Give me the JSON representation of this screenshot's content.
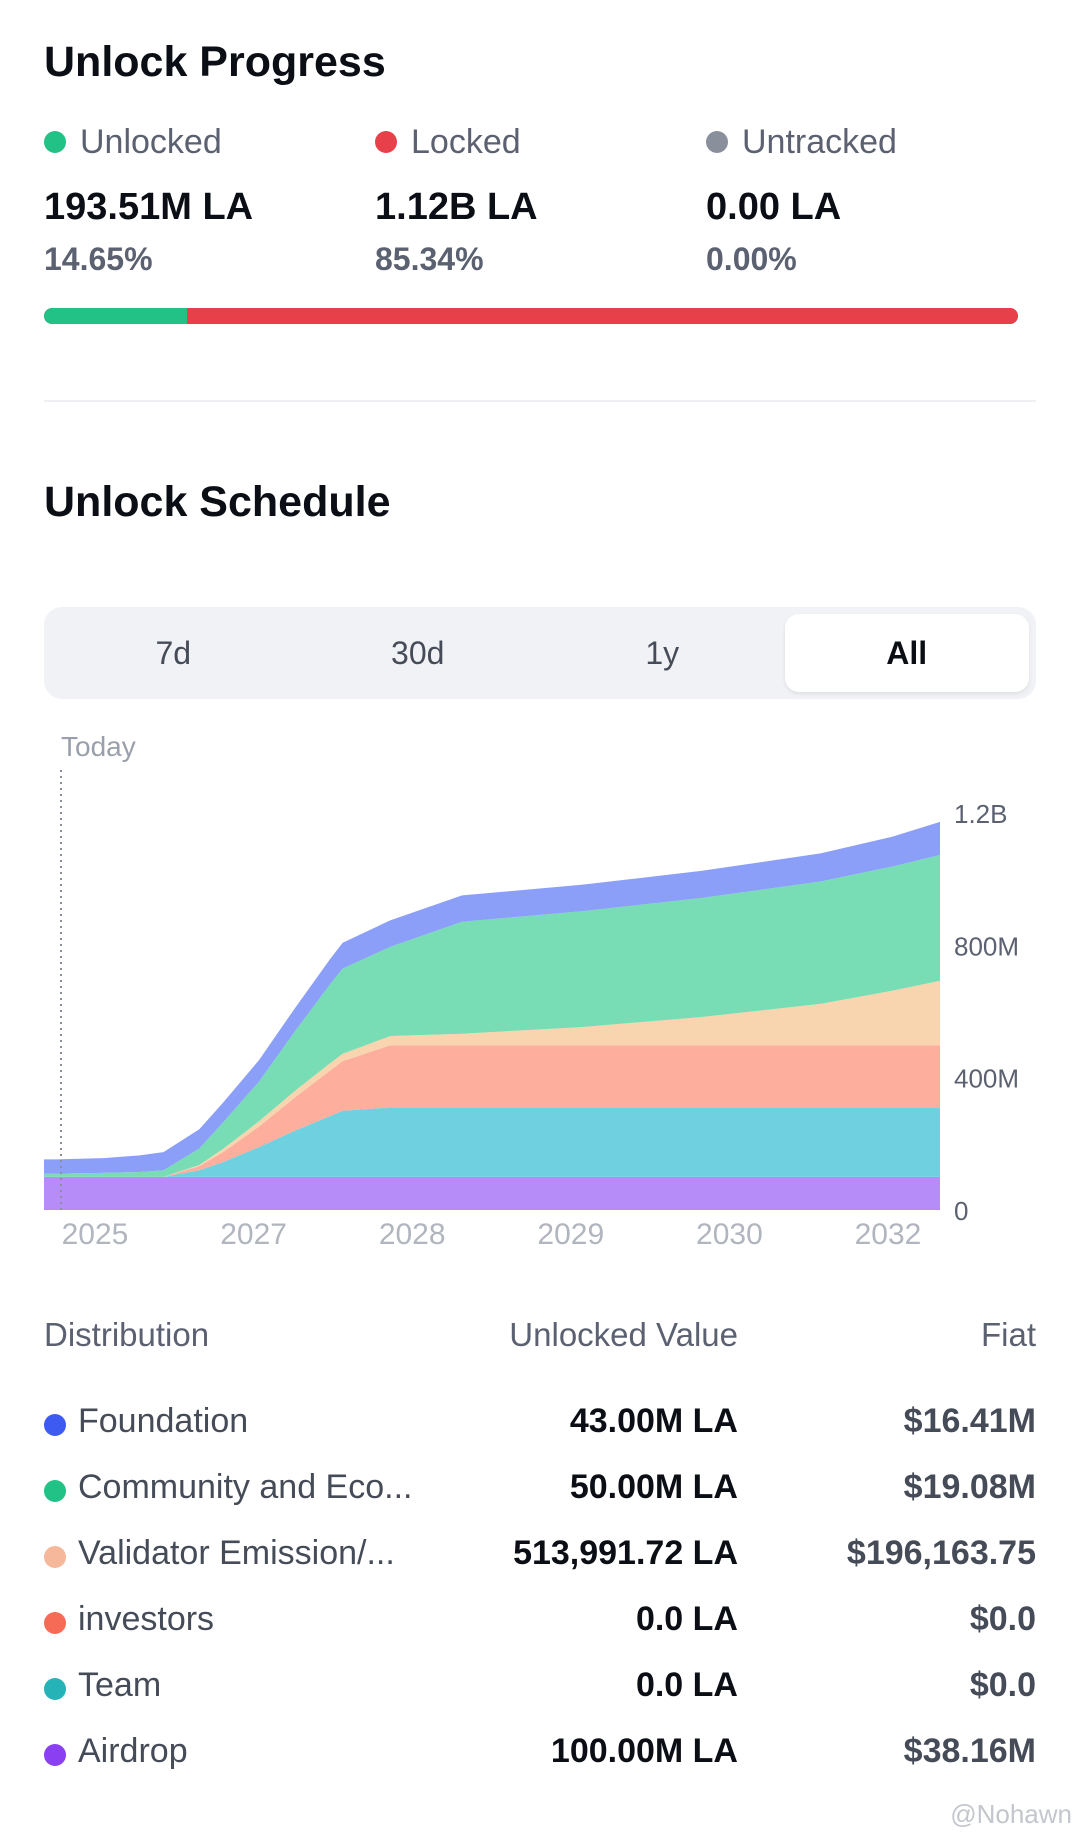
{
  "progress": {
    "title": "Unlock Progress",
    "unlocked": {
      "label": "Unlocked",
      "amount": "193.51M LA",
      "pct": "14.65%",
      "color": "#22c286",
      "fraction": 0.1465
    },
    "locked": {
      "label": "Locked",
      "amount": "1.12B LA",
      "pct": "85.34%",
      "color": "#e8404b",
      "fraction": 0.8534
    },
    "untracked": {
      "label": "Untracked",
      "amount": "0.00 LA",
      "pct": "0.00%",
      "color": "#8a8f9c",
      "fraction": 0.0
    }
  },
  "schedule": {
    "title": "Unlock Schedule",
    "tabs": [
      "7d",
      "30d",
      "1y",
      "All"
    ],
    "active_tab": "All"
  },
  "chart_data": {
    "type": "area",
    "stacked": true,
    "today_label": "Today",
    "x_tick_labels": [
      "2025",
      "2027",
      "2028",
      "2029",
      "2030",
      "2032"
    ],
    "y_tick_labels": [
      "1.2B",
      "800M",
      "400M",
      "0"
    ],
    "y_ticks": [
      1200,
      800,
      400,
      0
    ],
    "ylim": [
      0,
      1330
    ],
    "xlim": [
      2025.5,
      2033.0
    ],
    "x": [
      2025.5,
      2025.6,
      2026.0,
      2026.3,
      2026.5,
      2026.8,
      2027.0,
      2027.3,
      2027.6,
      2027.9,
      2028.0,
      2028.4,
      2029.0,
      2030.0,
      2031.0,
      2032.0,
      2032.6,
      2033.0
    ],
    "series": [
      {
        "name": "Airdrop",
        "color": "#b68cf8",
        "values": [
          100,
          100,
          100,
          100,
          100,
          100,
          100,
          100,
          100,
          100,
          100,
          100,
          100,
          100,
          100,
          100,
          100,
          100
        ]
      },
      {
        "name": "Team",
        "color": "#6fd0e0",
        "values": [
          0,
          0,
          0,
          0,
          0,
          20,
          45,
          90,
          140,
          185,
          200,
          210,
          210,
          210,
          210,
          210,
          210,
          210
        ]
      },
      {
        "name": "investors",
        "color": "#fdae9c",
        "values": [
          0,
          0,
          0,
          0,
          0,
          12,
          30,
          62,
          100,
          138,
          150,
          188,
          188,
          188,
          188,
          188,
          188,
          188
        ]
      },
      {
        "name": "Validator Emission/...",
        "color": "#f8d5ae",
        "values": [
          0,
          0,
          0,
          0,
          0,
          4,
          10,
          16,
          20,
          22,
          22,
          28,
          35,
          55,
          85,
          125,
          165,
          195
        ]
      },
      {
        "name": "Community and Eco...",
        "color": "#78ddb5",
        "values": [
          10,
          10,
          12,
          15,
          20,
          50,
          80,
          120,
          180,
          240,
          258,
          270,
          338,
          350,
          360,
          370,
          375,
          380
        ]
      },
      {
        "name": "Foundation",
        "color": "#8b9ef8",
        "values": [
          43,
          43,
          45,
          50,
          55,
          58,
          60,
          65,
          70,
          76,
          78,
          80,
          80,
          80,
          82,
          85,
          90,
          100
        ]
      }
    ]
  },
  "distribution": {
    "headers": {
      "name": "Distribution",
      "value": "Unlocked Value",
      "fiat": "Fiat"
    },
    "rows": [
      {
        "name": "Foundation",
        "value": "43.00M LA",
        "fiat": "$16.41M",
        "color": "#3d5af1"
      },
      {
        "name": "Community and Eco...",
        "value": "50.00M LA",
        "fiat": "$19.08M",
        "color": "#22c286"
      },
      {
        "name": "Validator Emission/...",
        "value": "513,991.72 LA",
        "fiat": "$196,163.75",
        "color": "#f5b89a"
      },
      {
        "name": "investors",
        "value": "0.0 LA",
        "fiat": "$0.0",
        "color": "#f56b55"
      },
      {
        "name": "Team",
        "value": "0.0 LA",
        "fiat": "$0.0",
        "color": "#26b3b8"
      },
      {
        "name": "Airdrop",
        "value": "100.00M LA",
        "fiat": "$38.16M",
        "color": "#8a3ff0"
      }
    ]
  },
  "watermark": "@Nohawn"
}
